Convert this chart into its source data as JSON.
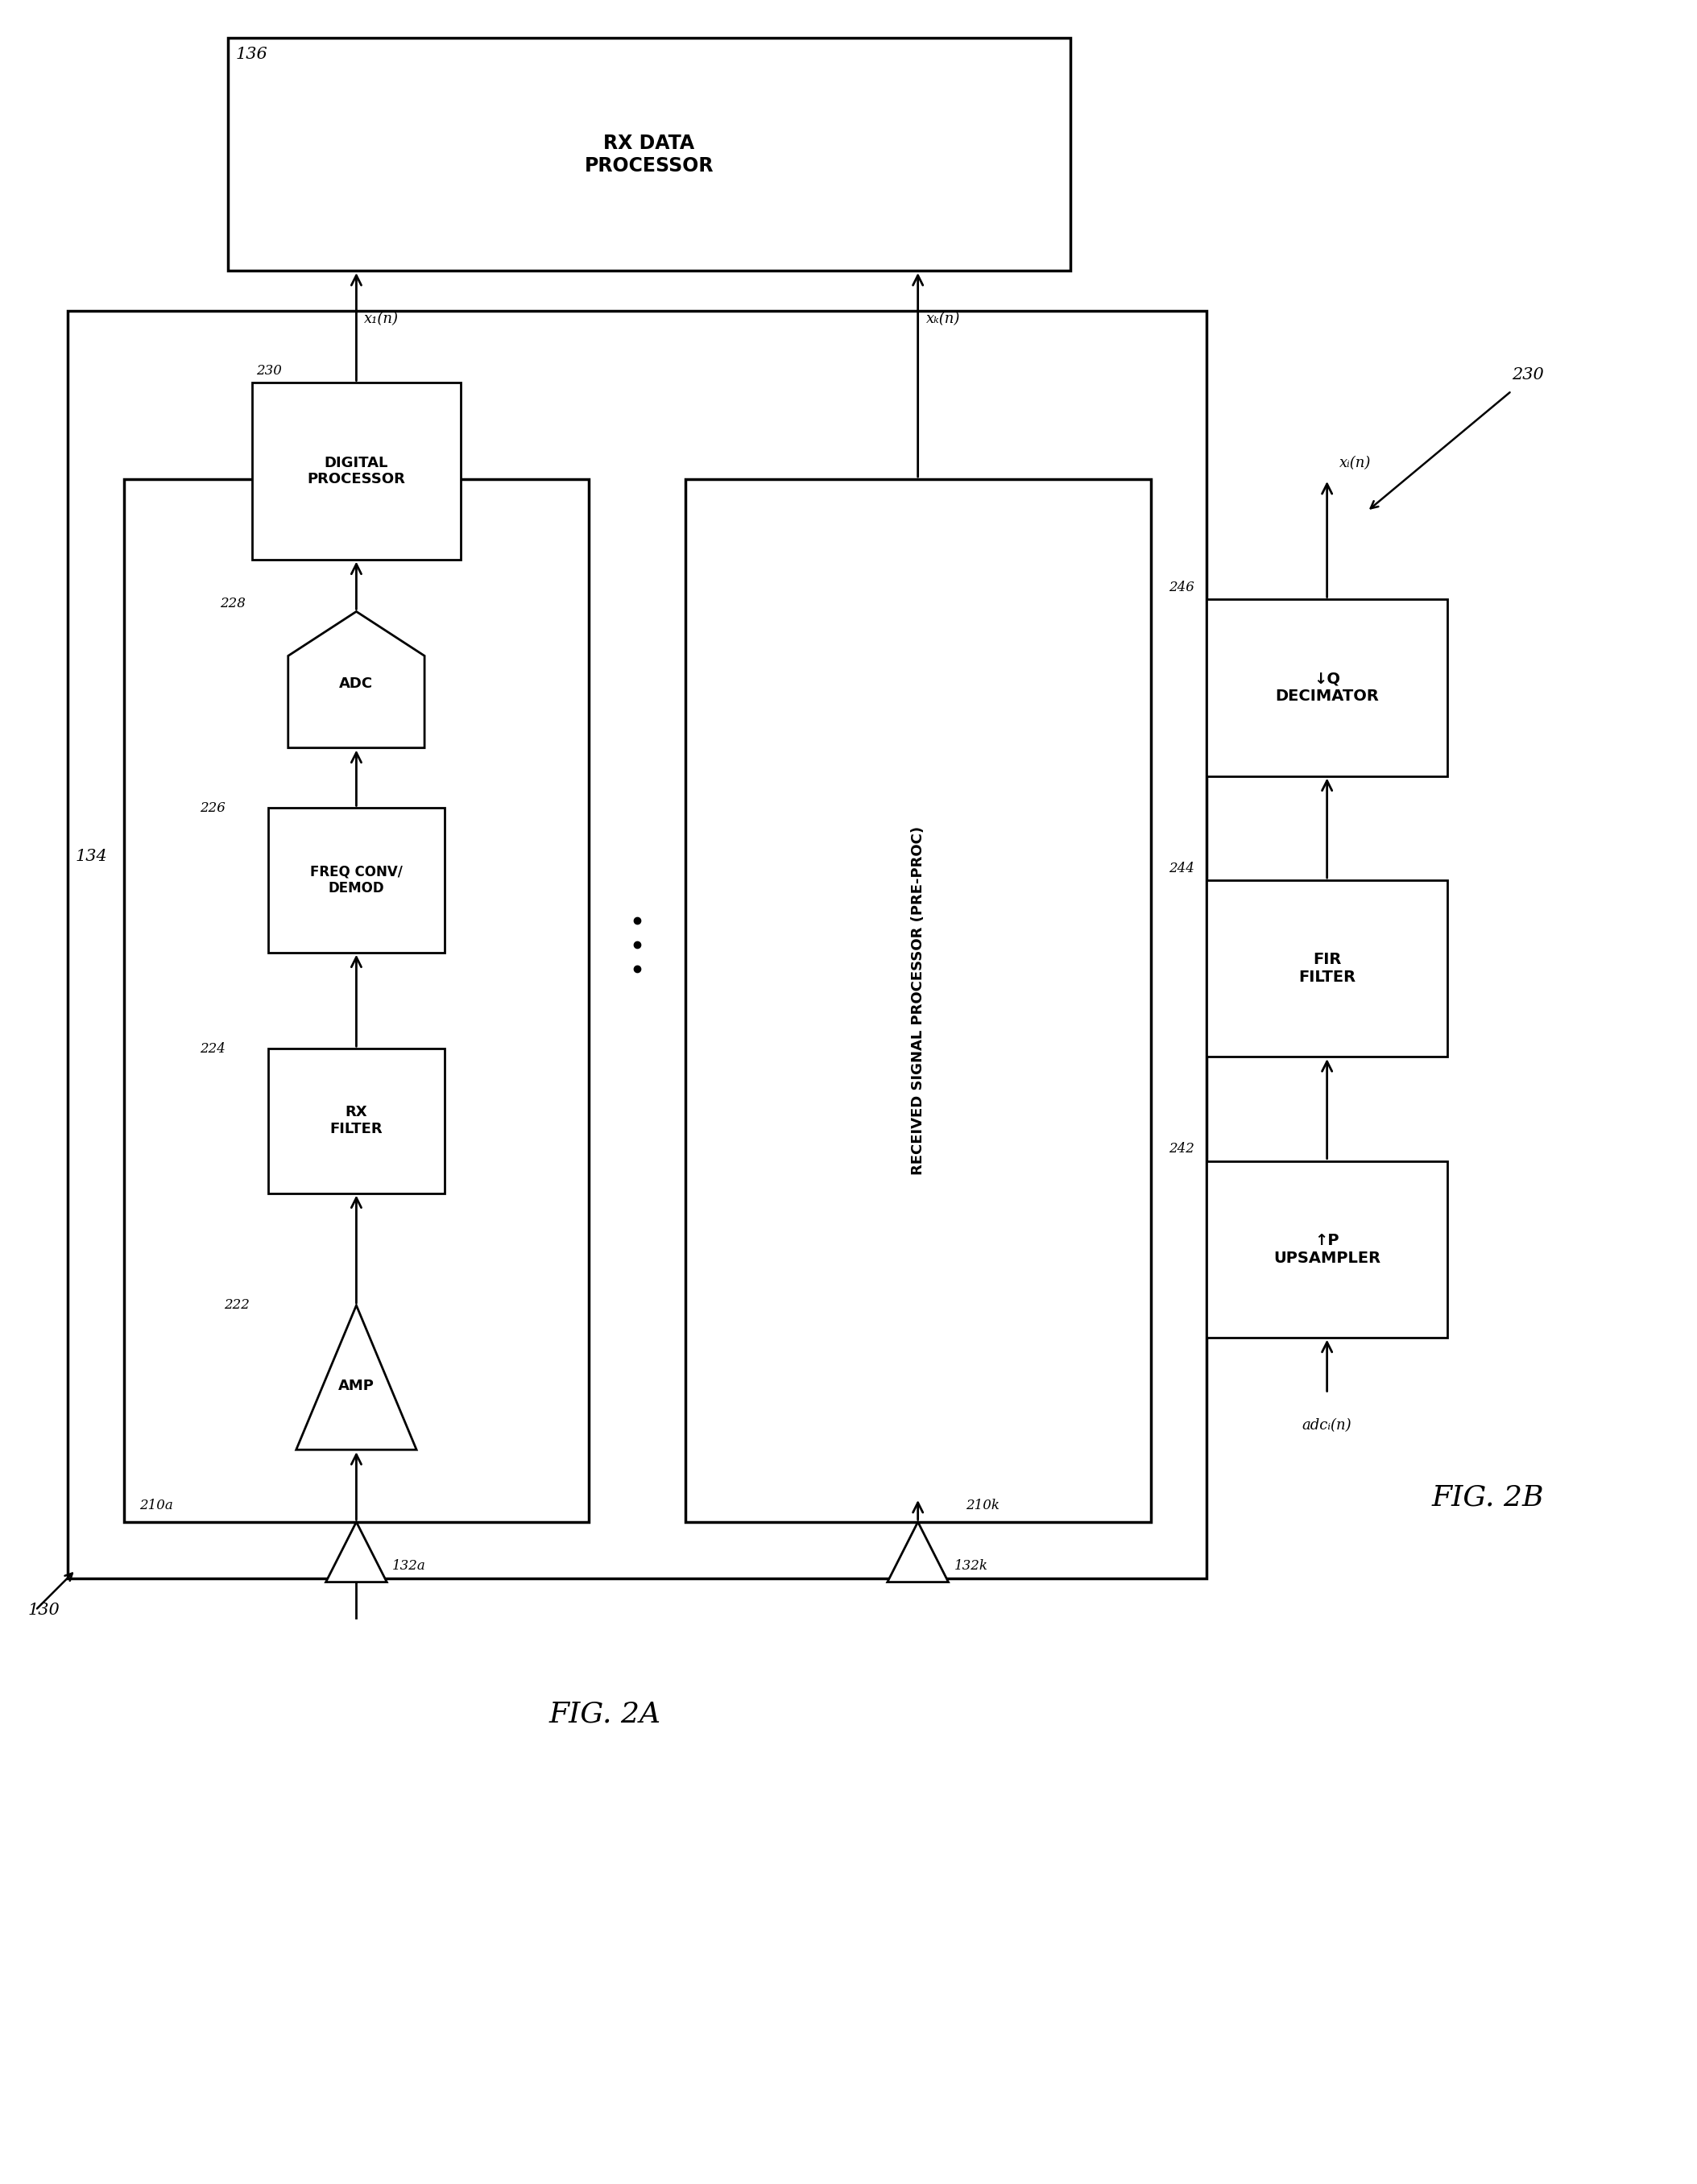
{
  "bg_color": "#ffffff",
  "fig_title_2a": "FIG. 2A",
  "fig_title_2b": "FIG. 2B",
  "label_136": "136",
  "label_134": "134",
  "label_130": "130",
  "label_210a": "210a",
  "label_210k": "210k",
  "label_222": "222",
  "label_224": "224",
  "label_226": "226",
  "label_228": "228",
  "label_230": "230",
  "label_242": "242",
  "label_244": "244",
  "label_246": "246",
  "label_132a": "132a",
  "label_132k": "132k",
  "text_rx_data_processor": "RX DATA\nPROCESSOR",
  "text_digital_processor": "DIGITAL\nPROCESSOR",
  "text_adc": "ADC",
  "text_freq_conv": "FREQ CONV/\nDEMOD",
  "text_rx_filter": "RX\nFILTER",
  "text_amp": "AMP",
  "text_pre_proc": "RECEIVED SIGNAL PROCESSOR (PRE-PROC)",
  "text_upsampler": "↑P\nUPSAMPLER",
  "text_fir_filter": "FIR\nFILTER",
  "text_decimator": "↓Q\nDECIMATOR",
  "signal_x1n": "x₁(n)",
  "signal_xkn": "xₖ(n)",
  "signal_adcn": "adcᵢ(n)",
  "signal_xin": "xᵢ(n)"
}
